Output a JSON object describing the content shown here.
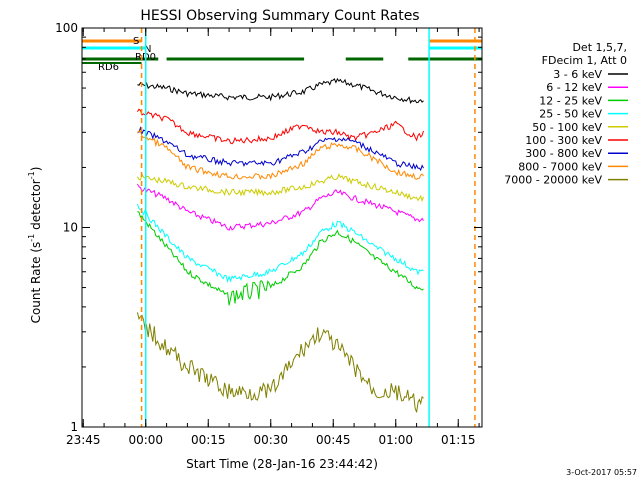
{
  "chart_data": {
    "type": "line",
    "title": "HESSI Observing Summary Count Rates",
    "xlabel": "Start Time (28-Jan-16 23:44:42)",
    "ylabel_main": "Count Rate (s",
    "ylabel_sup1": "-1",
    "ylabel_mid": " detector",
    "ylabel_sup2": "-1",
    "ylabel_end": ")",
    "yscale": "log",
    "ylim": [
      1,
      100
    ],
    "xlim": [
      "23:44:42",
      "01:20:42"
    ],
    "x_ticks": [
      "23:45",
      "00:00",
      "00:15",
      "00:30",
      "00:45",
      "01:00",
      "01:15"
    ],
    "y_ticks": [
      "1",
      "10",
      "100"
    ],
    "timestamp": "3-Oct-2017 05:57",
    "legend_header": [
      "Det 1,5,7,",
      "FDecim 1, Att 0"
    ],
    "flag_labels": {
      "saa": "S",
      "night": "N",
      "rd0": "RD0",
      "rd6": "RD6"
    },
    "series": [
      {
        "name": "3 - 6 keV",
        "color": "#000000",
        "x": [
          "23:58",
          "00:05",
          "00:10",
          "00:20",
          "00:30",
          "00:38",
          "00:42",
          "00:46",
          "00:50",
          "00:55",
          "01:00",
          "01:05",
          "01:07"
        ],
        "values": [
          52,
          50,
          47,
          45,
          45,
          48,
          52,
          54,
          52,
          48,
          45,
          43,
          44
        ]
      },
      {
        "name": "6 - 12 keV",
        "color": "#ff00ff",
        "x": [
          "23:58",
          "00:05",
          "00:10",
          "00:20",
          "00:30",
          "00:38",
          "00:42",
          "00:46",
          "00:50",
          "00:55",
          "01:00",
          "01:05",
          "01:07"
        ],
        "values": [
          16,
          14,
          12,
          10,
          10.5,
          12,
          14,
          15,
          14,
          13,
          12,
          11,
          11
        ]
      },
      {
        "name": "12 - 25 keV",
        "color": "#00cc00",
        "x": [
          "23:58",
          "00:05",
          "00:10",
          "00:20",
          "00:30",
          "00:38",
          "00:42",
          "00:46",
          "00:50",
          "00:55",
          "01:00",
          "01:05",
          "01:07"
        ],
        "values": [
          12,
          8,
          6,
          4.5,
          5,
          6.5,
          8.5,
          9.5,
          8.5,
          7,
          6,
          5,
          5
        ]
      },
      {
        "name": "25 - 50 keV",
        "color": "#00ffff",
        "x": [
          "23:58",
          "00:05",
          "00:10",
          "00:20",
          "00:30",
          "00:38",
          "00:42",
          "00:46",
          "00:50",
          "00:55",
          "01:00",
          "01:05",
          "01:07"
        ],
        "values": [
          13,
          9,
          7,
          5.5,
          6,
          7.5,
          9.5,
          10.5,
          9.5,
          8,
          7,
          6,
          6
        ]
      },
      {
        "name": "50 - 100 keV",
        "color": "#cccc00",
        "x": [
          "23:58",
          "00:05",
          "00:10",
          "00:20",
          "00:30",
          "00:38",
          "00:42",
          "00:46",
          "00:50",
          "00:55",
          "01:00",
          "01:05",
          "01:07"
        ],
        "values": [
          18,
          17,
          16,
          15,
          15,
          16,
          17,
          18,
          17,
          16,
          15,
          14,
          14
        ]
      },
      {
        "name": "100 - 300 keV",
        "color": "#ff0000",
        "x": [
          "23:58",
          "00:05",
          "00:10",
          "00:20",
          "00:30",
          "00:38",
          "00:42",
          "00:46",
          "00:50",
          "00:55",
          "01:00",
          "01:05",
          "01:07"
        ],
        "values": [
          38,
          35,
          30,
          27,
          28,
          33,
          30,
          30,
          28,
          30,
          33,
          28,
          30
        ]
      },
      {
        "name": "300 - 800 keV",
        "color": "#0000cc",
        "x": [
          "23:58",
          "00:05",
          "00:10",
          "00:20",
          "00:30",
          "00:38",
          "00:42",
          "00:46",
          "00:50",
          "00:55",
          "01:00",
          "01:05",
          "01:07"
        ],
        "values": [
          31,
          27,
          23,
          21,
          21,
          24,
          27,
          28,
          27,
          24,
          21,
          20,
          20
        ]
      },
      {
        "name": "800 - 7000 keV",
        "color": "#ff8800",
        "x": [
          "23:58",
          "00:05",
          "00:10",
          "00:20",
          "00:30",
          "00:38",
          "00:42",
          "00:46",
          "00:50",
          "00:55",
          "01:00",
          "01:05",
          "01:07"
        ],
        "values": [
          30,
          25,
          20,
          18,
          18,
          21,
          25,
          26,
          25,
          22,
          19,
          18,
          18
        ]
      },
      {
        "name": "7000 - 20000 keV",
        "color": "#808000",
        "x": [
          "23:58",
          "00:05",
          "00:10",
          "00:20",
          "00:30",
          "00:38",
          "00:42",
          "00:46",
          "00:50",
          "00:55",
          "01:00",
          "01:05",
          "01:07"
        ],
        "values": [
          3.5,
          2.5,
          2,
          1.5,
          1.5,
          2.5,
          3,
          2.5,
          2,
          1.5,
          1.5,
          1.3,
          1.3
        ]
      }
    ],
    "flags": [
      {
        "name": "saa",
        "color": "#ff8800",
        "spans": [
          [
            "23:44:42",
            "23:59"
          ],
          [
            "01:08",
            "01:20:42"
          ]
        ]
      },
      {
        "name": "night",
        "color": "#00ffff",
        "spans": [
          [
            "23:44:42",
            "00:00"
          ],
          [
            "01:08",
            "01:20:42"
          ]
        ]
      },
      {
        "name": "rd0",
        "color": "#006600",
        "spans": [
          [
            "23:44:42",
            "00:03"
          ],
          [
            "00:05",
            "00:38"
          ],
          [
            "00:48",
            "00:57"
          ],
          [
            "01:03",
            "01:20:42"
          ]
        ]
      }
    ],
    "vlines": [
      {
        "time": "23:59",
        "color": "#ff8800"
      },
      {
        "time": "00:00",
        "color": "#00ffff"
      },
      {
        "time": "01:08",
        "color": "#00ffff"
      },
      {
        "time": "01:19",
        "color": "#ff8800"
      }
    ]
  }
}
